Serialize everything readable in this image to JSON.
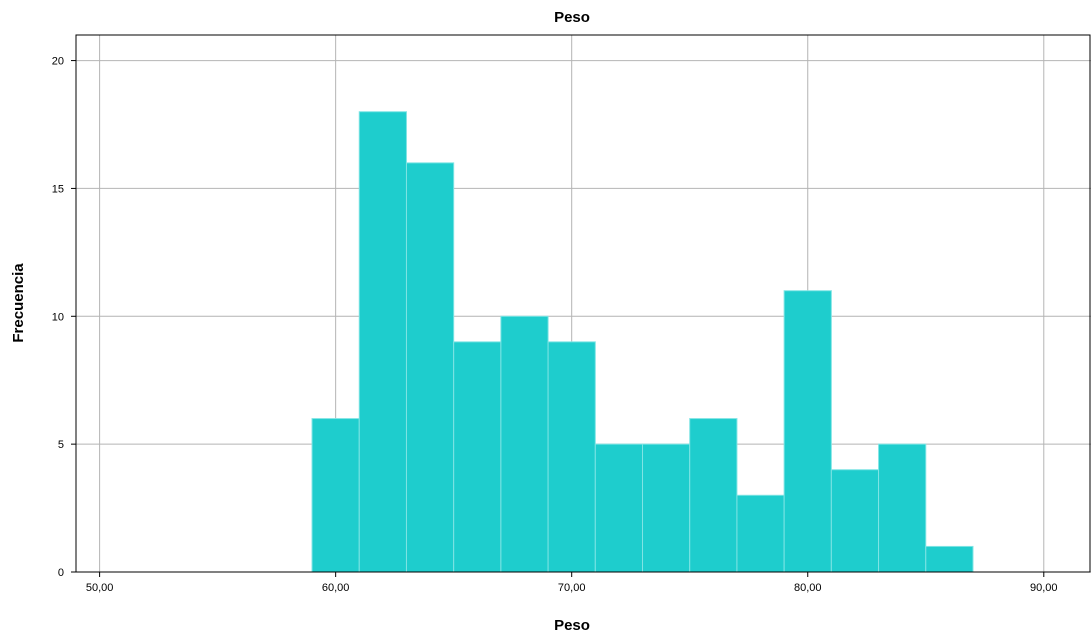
{
  "chart_data": {
    "type": "bar",
    "title": "Peso",
    "xlabel": "Peso",
    "ylabel": "Frecuencia",
    "x_ticks": [
      "50,00",
      "60,00",
      "70,00",
      "80,00",
      "90,00"
    ],
    "x_tick_values": [
      50,
      60,
      70,
      80,
      90
    ],
    "y_ticks": [
      "0",
      "5",
      "10",
      "15",
      "20"
    ],
    "y_tick_values": [
      0,
      5,
      10,
      15,
      20
    ],
    "xlim": [
      49,
      92
    ],
    "ylim": [
      0,
      21
    ],
    "bin_edges": [
      59,
      61,
      63,
      65,
      67,
      69,
      71,
      73,
      75,
      77,
      79,
      81,
      83,
      85,
      87
    ],
    "values": [
      6,
      18,
      16,
      9,
      10,
      9,
      5,
      5,
      6,
      3,
      11,
      4,
      5,
      1
    ],
    "bar_color": "#1ecdcd",
    "bar_edge_color": "#7fe4e4",
    "grid": true
  }
}
